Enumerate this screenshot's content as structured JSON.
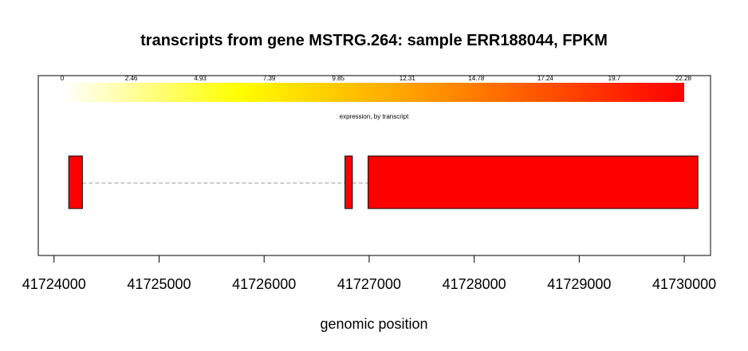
{
  "chart_data": {
    "type": "gene-model",
    "title": "transcripts from gene MSTRG.264: sample ERR188044, FPKM",
    "xlabel": "genomic position",
    "xlim": [
      41723850,
      41730250
    ],
    "x_ticks": [
      41724000,
      41725000,
      41726000,
      41727000,
      41728000,
      41729000,
      41730000
    ],
    "x_tick_labels": [
      "41724000",
      "41725000",
      "41726000",
      "41727000",
      "41728000",
      "41729000",
      "41730000"
    ],
    "colorbar": {
      "label": "expression, by transcript",
      "min": 0,
      "max": 22.28,
      "tick_labels": [
        "0",
        "2.46",
        "4.93",
        "7.39",
        "9.85",
        "12.31",
        "14.78",
        "17.24",
        "19.7",
        "22.28"
      ],
      "colors": [
        "#ffffff",
        "#ffff00",
        "#ff0000"
      ]
    },
    "transcripts": [
      {
        "fpkm": 22.28,
        "color": "#ff0000",
        "exons": [
          [
            41724140,
            41724270
          ],
          [
            41726770,
            41726840
          ],
          [
            41726990,
            41730130
          ]
        ],
        "intron_style": "dashed"
      }
    ]
  }
}
